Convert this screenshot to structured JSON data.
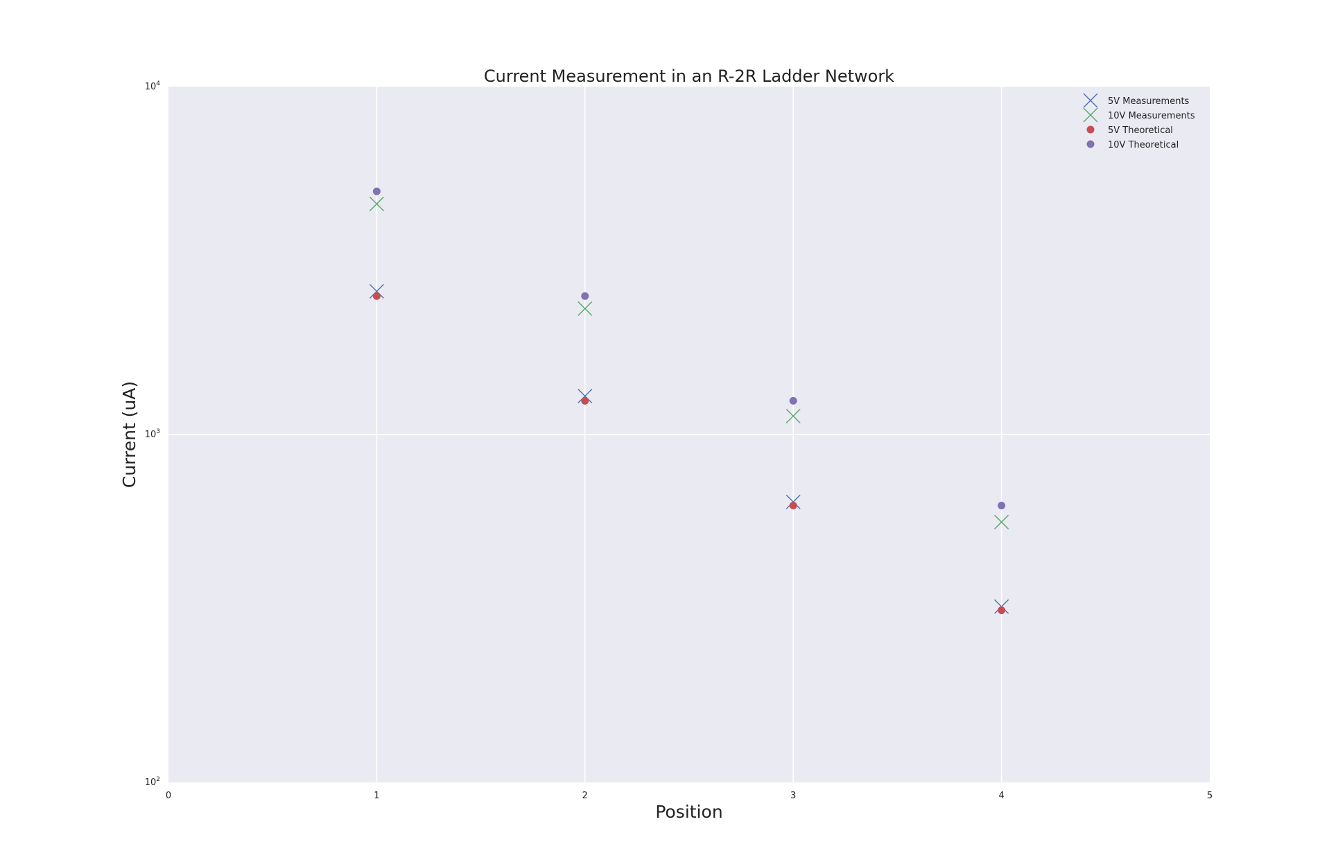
{
  "chart_data": {
    "type": "scatter",
    "title": "Current Measurement in an R-2R Ladder Network",
    "xlabel": "Position",
    "ylabel": "Current (uA)",
    "xlim": [
      0,
      5
    ],
    "ylim": [
      100,
      10000
    ],
    "yscale": "log",
    "grid": true,
    "legend_position": "top-right",
    "x_ticks": [
      "0",
      "1",
      "2",
      "3",
      "4",
      "5"
    ],
    "y_ticks": [
      {
        "base": "10",
        "exp": "2",
        "value": 100
      },
      {
        "base": "10",
        "exp": "3",
        "value": 1000
      },
      {
        "base": "10",
        "exp": "4",
        "value": 10000
      }
    ],
    "background_color": "#EAEAF2",
    "grid_color": "#FFFFFF",
    "series": [
      {
        "name": "5V Measurements",
        "marker": "x",
        "color": "#4C72B0",
        "x": [
          1,
          2,
          3,
          4
        ],
        "y": [
          2580,
          1290,
          640,
          320
        ]
      },
      {
        "name": "10V Measurements",
        "marker": "x",
        "color": "#55A868",
        "x": [
          1,
          2,
          3,
          4
        ],
        "y": [
          4600,
          2300,
          1130,
          560
        ]
      },
      {
        "name": "5V Theoretical",
        "marker": "o",
        "color": "#C44E52",
        "x": [
          1,
          2,
          3,
          4
        ],
        "y": [
          2500,
          1250,
          625,
          312.5
        ]
      },
      {
        "name": "10V Theoretical",
        "marker": "o",
        "color": "#8172B2",
        "x": [
          1,
          2,
          3,
          4
        ],
        "y": [
          5000,
          2500,
          1250,
          625
        ]
      }
    ]
  }
}
